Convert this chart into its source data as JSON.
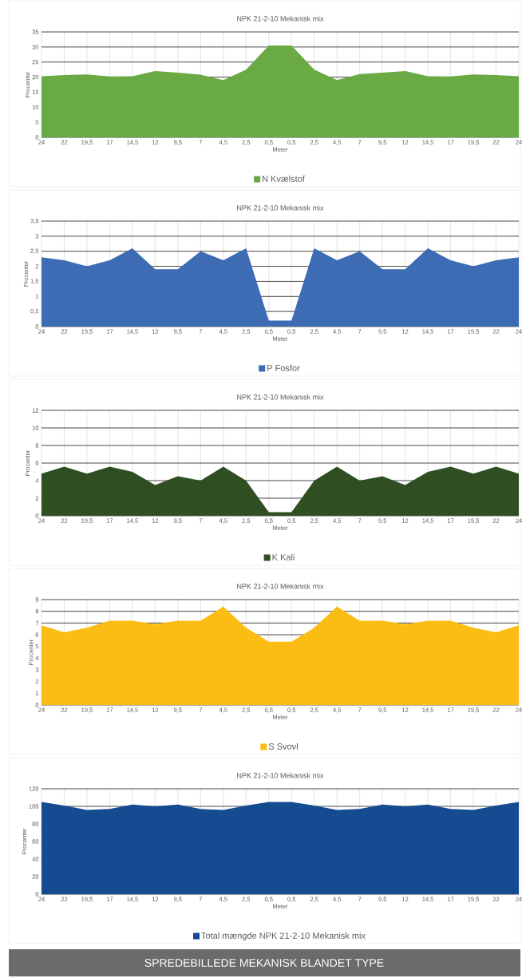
{
  "chart_data": [
    {
      "type": "area",
      "title": "NPK 21-2-10 Mekanisk mix",
      "xlabel": "Meter",
      "ylabel": "Procenter",
      "categories": [
        "24",
        "22",
        "19,5",
        "17",
        "14,5",
        "12",
        "9,5",
        "7",
        "4,5",
        "2,5",
        "0,5",
        "0,5",
        "2,5",
        "4,5",
        "7",
        "9,5",
        "12",
        "14,5",
        "17",
        "19,5",
        "22",
        "24"
      ],
      "series": [
        {
          "name": "N Kvælstof",
          "color": "#6aaa44",
          "values": [
            20.3,
            20.7,
            20.9,
            20.2,
            20.3,
            22.0,
            21.5,
            20.8,
            19.0,
            22.5,
            30.5,
            30.5,
            22.5,
            19.0,
            21.0,
            21.5,
            22.0,
            20.3,
            20.2,
            20.9,
            20.7,
            20.3
          ]
        }
      ],
      "ylim": [
        0,
        35
      ],
      "yticks": [
        0,
        5,
        10,
        15,
        20,
        25,
        30,
        35
      ],
      "grid": true,
      "legend": "bottom"
    },
    {
      "type": "area",
      "title": "NPK 21-2-10 Mekanisk mix",
      "xlabel": "Meter",
      "ylabel": "Procenter",
      "categories": [
        "24",
        "22",
        "19,5",
        "17",
        "14,5",
        "12",
        "9,5",
        "7",
        "4,5",
        "2,5",
        "0,5",
        "0,5",
        "2,5",
        "4,5",
        "7",
        "9,5",
        "12",
        "14,5",
        "17",
        "19,5",
        "22",
        "24"
      ],
      "series": [
        {
          "name": "P Fosfor",
          "color": "#3d6cb5",
          "values": [
            2.3,
            2.2,
            2.0,
            2.2,
            2.6,
            1.9,
            1.9,
            2.5,
            2.2,
            2.6,
            0.2,
            0.2,
            2.6,
            2.2,
            2.5,
            1.9,
            1.9,
            2.6,
            2.2,
            2.0,
            2.2,
            2.3
          ]
        }
      ],
      "ylim": [
        0,
        3.5
      ],
      "yticks": [
        0,
        {
          "value": 0.5,
          "label": "0,5"
        },
        1,
        {
          "value": 1.5,
          "label": "1,5"
        },
        2,
        {
          "value": 2.5,
          "label": "2,5"
        },
        3,
        {
          "value": 3.5,
          "label": "3,5"
        }
      ],
      "grid": true,
      "legend": "bottom"
    },
    {
      "type": "area",
      "title": "NPK 21-2-10 Mekanisk mix",
      "xlabel": "Meter",
      "ylabel": "Procenter",
      "categories": [
        "24",
        "22",
        "19,5",
        "17",
        "14,5",
        "12",
        "9,5",
        "7",
        "4,5",
        "2,5",
        "0,5",
        "0,5",
        "2,5",
        "4,5",
        "7",
        "9,5",
        "12",
        "14,5",
        "17",
        "19,5",
        "22",
        "24"
      ],
      "series": [
        {
          "name": "K Kali",
          "color": "#2f4f23",
          "values": [
            4.8,
            5.6,
            4.8,
            5.6,
            5.0,
            3.5,
            4.5,
            4.0,
            5.6,
            4.0,
            0.4,
            0.4,
            4.0,
            5.6,
            4.0,
            4.5,
            3.5,
            5.0,
            5.6,
            4.8,
            5.6,
            4.8
          ]
        }
      ],
      "ylim": [
        0,
        12
      ],
      "yticks": [
        0,
        2,
        4,
        6,
        8,
        10,
        12
      ],
      "grid": true,
      "legend": "bottom"
    },
    {
      "type": "area",
      "title": "NPK 21-2-10 Mekanisk mix",
      "xlabel": "Meter",
      "ylabel": "Procenter",
      "categories": [
        "24",
        "22",
        "19,5",
        "17",
        "14,5",
        "12",
        "9,5",
        "7",
        "4,5",
        "2,5",
        "0,5",
        "0,5",
        "2,5",
        "4,5",
        "7",
        "9,5",
        "12",
        "14,5",
        "17",
        "19,5",
        "22",
        "24"
      ],
      "series": [
        {
          "name": "S Svovl",
          "color": "#fbbd14",
          "values": [
            6.8,
            6.2,
            6.6,
            7.2,
            7.2,
            6.9,
            7.2,
            7.2,
            8.4,
            6.6,
            5.4,
            5.4,
            6.6,
            8.4,
            7.2,
            7.2,
            6.9,
            7.2,
            7.2,
            6.6,
            6.2,
            6.8
          ]
        }
      ],
      "ylim": [
        0,
        9
      ],
      "yticks": [
        0,
        1,
        2,
        3,
        4,
        5,
        6,
        7,
        8,
        9
      ],
      "grid": true,
      "legend": "bottom"
    },
    {
      "type": "area",
      "title": "NPK 21-2-10 Mekanisk mix",
      "xlabel": "Meter",
      "ylabel": "Procenter",
      "categories": [
        "24",
        "22",
        "19,5",
        "17",
        "14,5",
        "12",
        "9,5",
        "7",
        "4,5",
        "2,5",
        "0,5",
        "0,5",
        "2,5",
        "4,5",
        "7",
        "9,5",
        "12",
        "14,5",
        "17",
        "19,5",
        "22",
        "24"
      ],
      "series": [
        {
          "name": "Total mængde NPK 21-2-10 Mekanisk mix",
          "color": "#144b91",
          "values": [
            105,
            101,
            96,
            97,
            102,
            100,
            102,
            97,
            96,
            101,
            105,
            105,
            101,
            96,
            97,
            102,
            100,
            102,
            97,
            96,
            101,
            105
          ]
        }
      ],
      "ylim": [
        0,
        120
      ],
      "yticks": [
        0,
        20,
        40,
        60,
        80,
        100,
        120
      ],
      "grid": true,
      "legend": "bottom",
      "annotations": [
        "SPREDEBILLEDE MEKANISK BLANDET TYPE"
      ]
    }
  ]
}
